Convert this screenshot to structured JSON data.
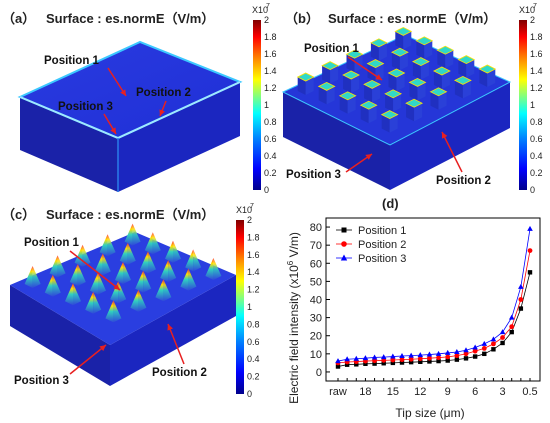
{
  "panels": [
    {
      "id": "a",
      "letter": "（a）",
      "title": "Surface : es.normE（V/m）",
      "positions": [
        "Position 1",
        "Position 2",
        "Position 3"
      ]
    },
    {
      "id": "b",
      "letter": "（b）",
      "title": "Surface : es.normE（V/m）",
      "positions": [
        "Position 1",
        "Position 2",
        "Position 3"
      ]
    },
    {
      "id": "c",
      "letter": "（c）",
      "title": "Surface : es.normE（V/m）",
      "positions": [
        "Position 1",
        "Position 2",
        "Position 3"
      ]
    }
  ],
  "colorbar": {
    "multiplier": "X10",
    "exponent": "7",
    "ticks": [
      "2",
      "1.8",
      "1.6",
      "1.4",
      "1.2",
      "1",
      "0.8",
      "0.6",
      "0.4",
      "0.2",
      "0"
    ],
    "colors": [
      "#800000",
      "#ff0000",
      "#ff8000",
      "#ffff00",
      "#80ff80",
      "#00ffff",
      "#0080ff",
      "#0000ff",
      "#00008b"
    ]
  },
  "chart_data": {
    "panel_letter": "(d)",
    "type": "line",
    "x": [
      "raw",
      "20",
      "19",
      "18",
      "17",
      "16",
      "15",
      "14",
      "13",
      "12",
      "11",
      "10",
      "9",
      "8",
      "7",
      "6",
      "5",
      "4",
      "3",
      "2",
      "1",
      "0.5"
    ],
    "x_tick_labels": [
      "raw",
      "18",
      "15",
      "12",
      "9",
      "6",
      "3",
      "0.5"
    ],
    "xlabel_main": "Tip size (",
    "xlabel_unit": "μm",
    "xlabel_end": ")",
    "ylabel_main": "Electric field intensity (x10",
    "ylabel_exp": "6",
    "ylabel_end": " V/m)",
    "ylim": [
      -5,
      85
    ],
    "y_ticks": [
      0,
      10,
      20,
      30,
      40,
      50,
      60,
      70,
      80
    ],
    "grid": false,
    "legend_position": "top-left",
    "series": [
      {
        "name": "Position 1",
        "color": "#000000",
        "marker": "square",
        "values": [
          3,
          4,
          4.2,
          4.5,
          4.6,
          4.8,
          5,
          5.2,
          5.4,
          5.6,
          5.8,
          6,
          6.3,
          6.8,
          7.5,
          8.5,
          10,
          12.5,
          16,
          22,
          35,
          55
        ]
      },
      {
        "name": "Position 2",
        "color": "#ff0000",
        "marker": "circle",
        "values": [
          5,
          5.5,
          5.7,
          6,
          6.2,
          6.4,
          6.6,
          6.8,
          7,
          7.3,
          7.6,
          7.9,
          8.3,
          9,
          10,
          11.5,
          13,
          15.5,
          19,
          25,
          40,
          67
        ]
      },
      {
        "name": "Position 3",
        "color": "#0000ff",
        "marker": "triangle",
        "values": [
          6,
          7,
          7.3,
          7.6,
          8,
          8.2,
          8.5,
          8.8,
          9,
          9.3,
          9.6,
          10,
          10.5,
          11,
          12,
          13.5,
          15.5,
          18,
          22,
          30,
          47,
          79
        ]
      }
    ]
  }
}
